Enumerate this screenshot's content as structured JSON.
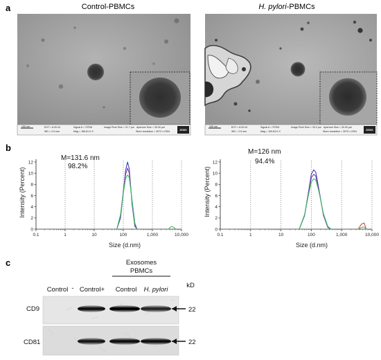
{
  "panel_a": {
    "letter": "a",
    "images": [
      {
        "title": "Control-PBMCs",
        "title_italic": "",
        "title_suffix": "",
        "scale_bar": "100 nm",
        "info": {
          "eht": "EHT = 8.00 kV",
          "wd": "WD = 2.5 mm",
          "signal": "Signal A = STEM",
          "mag": "Mag = 165.81 K X",
          "pixel": "Image Pixel Size = 21.7 pm",
          "aperture": "Aperture Size = 30.00 µm",
          "store": "Store resolution = 3072 x 2304"
        },
        "badge": "ZEISS"
      },
      {
        "title": "",
        "title_italic": "H. pylori",
        "title_suffix": "-PBMCs",
        "scale_bar": "100 nm",
        "info": {
          "eht": "EHT = 8.00 kV",
          "wd": "WD = 2.5 mm",
          "signal": "Signal A = STEM",
          "mag": "Mag = 109.64 K X",
          "pixel": "Image Pixel Size = 33.4 pm",
          "aperture": "Aperture Size = 30.00 µm",
          "store": "Store resolution = 3072 x 2304"
        },
        "badge": "ZEISS"
      }
    ]
  },
  "chart_data": [
    {
      "type": "line",
      "panel_letter": "b",
      "annotation_line1": "M=131.6 nm",
      "annotation_line2": "98.2%",
      "xlabel": "Size (d.nm)",
      "ylabel": "Intensity (Percent)",
      "x_scale": "log",
      "xlim": [
        0.1,
        10000
      ],
      "ylim": [
        0,
        12
      ],
      "x_ticks": [
        0.1,
        1,
        10,
        100,
        1000,
        10000
      ],
      "x_tick_labels": [
        "0.1",
        "1",
        "10",
        "100",
        "1,000",
        "10,000"
      ],
      "y_ticks": [
        0,
        2,
        4,
        6,
        8,
        10,
        12
      ],
      "y_tick_labels": [
        "0",
        "2",
        "4",
        "6",
        "8",
        "10",
        "12"
      ],
      "series": [
        {
          "color": "#3b3bc4",
          "x": [
            60,
            80,
            100,
            120,
            140,
            160,
            200,
            250,
            300
          ],
          "y": [
            0,
            2.0,
            6.5,
            10.5,
            12.0,
            10.8,
            4.5,
            0.5,
            0
          ]
        },
        {
          "color": "#8a3a9a",
          "x": [
            60,
            80,
            100,
            120,
            140,
            160,
            200,
            250,
            300
          ],
          "y": [
            0,
            2.4,
            6.8,
            9.8,
            10.9,
            10.0,
            5.0,
            0.8,
            0
          ]
        },
        {
          "color": "#3cc060",
          "x": [
            60,
            80,
            100,
            120,
            140,
            160,
            200,
            250,
            300
          ],
          "y": [
            0,
            2.6,
            6.4,
            9.0,
            9.7,
            9.2,
            5.2,
            1.1,
            0
          ]
        },
        {
          "color": "#3cc060",
          "x": [
            3500,
            4500,
            5500,
            6500
          ],
          "y": [
            0,
            0.5,
            0.3,
            0
          ]
        }
      ]
    },
    {
      "type": "line",
      "panel_letter": "",
      "annotation_line1": "M=126 nm",
      "annotation_line2": "94.4%",
      "xlabel": "Size (d.nm)",
      "ylabel": "Intensity (Percent)",
      "x_scale": "log",
      "xlim": [
        0.1,
        10000
      ],
      "ylim": [
        0,
        12
      ],
      "x_ticks": [
        0.1,
        1,
        10,
        100,
        1000,
        10000
      ],
      "x_tick_labels": [
        "0.1",
        "1",
        "10",
        "100",
        "1,000",
        "10,000"
      ],
      "y_ticks": [
        0,
        2,
        4,
        6,
        8,
        10,
        12
      ],
      "y_tick_labels": [
        "0",
        "2",
        "4",
        "6",
        "8",
        "10",
        "12"
      ],
      "series": [
        {
          "color": "#3b3bc4",
          "x": [
            40,
            60,
            80,
            100,
            120,
            140,
            180,
            250,
            350,
            450
          ],
          "y": [
            0,
            2.5,
            6.5,
            9.8,
            10.6,
            10.2,
            7.0,
            2.5,
            0.3,
            0
          ]
        },
        {
          "color": "#8a3a9a",
          "x": [
            40,
            60,
            80,
            100,
            120,
            140,
            180,
            250,
            350,
            450
          ],
          "y": [
            0,
            2.4,
            6.3,
            9.2,
            9.8,
            9.5,
            6.8,
            2.6,
            0.4,
            0
          ]
        },
        {
          "color": "#3cc060",
          "x": [
            40,
            60,
            80,
            100,
            120,
            140,
            180,
            250,
            350,
            450
          ],
          "y": [
            0,
            2.6,
            6.0,
            8.4,
            9.0,
            8.8,
            6.6,
            2.8,
            0.5,
            0
          ]
        },
        {
          "color": "#e04040",
          "x": [
            3500,
            4500,
            5500,
            6500
          ],
          "y": [
            0,
            0.9,
            1.1,
            0
          ]
        },
        {
          "color": "#3cc060",
          "x": [
            3500,
            4500,
            5500,
            6500
          ],
          "y": [
            0,
            0.3,
            0.4,
            0
          ]
        }
      ]
    }
  ],
  "panel_c": {
    "letter": "c",
    "group_header_1": "Exosomes",
    "group_header_2": "PBMCs",
    "kd_label": "kD",
    "lane_labels": [
      {
        "text": "Control",
        "italic": false
      },
      {
        "text": "-",
        "italic": false
      },
      {
        "text": "Control+",
        "italic": false
      },
      {
        "text": "Control",
        "italic": false
      },
      {
        "text": "H. pylori",
        "italic": true
      }
    ],
    "rows": [
      {
        "label": "CD9",
        "marker": "22",
        "band_intensity": [
          0.0,
          0.9,
          1.0,
          0.75
        ]
      },
      {
        "label": "CD81",
        "marker": "22",
        "band_intensity": [
          0.0,
          0.85,
          0.9,
          0.9
        ]
      }
    ]
  }
}
